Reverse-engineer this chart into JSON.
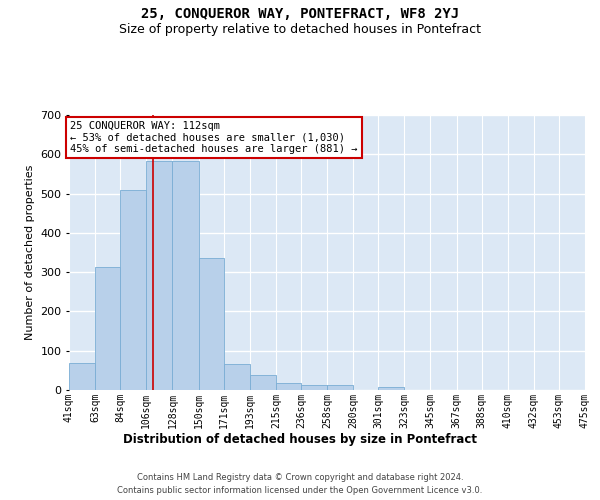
{
  "title": "25, CONQUEROR WAY, PONTEFRACT, WF8 2YJ",
  "subtitle": "Size of property relative to detached houses in Pontefract",
  "xlabel": "Distribution of detached houses by size in Pontefract",
  "ylabel": "Number of detached properties",
  "bar_color": "#b8d0ea",
  "bar_edge_color": "#7aadd4",
  "grid_color": "#c8d4e8",
  "background_color": "#dce8f5",
  "marker_line_color": "#cc0000",
  "marker_value": 112,
  "bin_edges": [
    41,
    63,
    84,
    106,
    128,
    150,
    171,
    193,
    215,
    236,
    258,
    280,
    301,
    323,
    345,
    367,
    388,
    410,
    432,
    453,
    475
  ],
  "bar_heights": [
    70,
    312,
    510,
    582,
    582,
    335,
    67,
    37,
    18,
    12,
    12,
    0,
    8,
    0,
    0,
    0,
    0,
    0,
    0,
    0
  ],
  "tick_labels": [
    "41sqm",
    "63sqm",
    "84sqm",
    "106sqm",
    "128sqm",
    "150sqm",
    "171sqm",
    "193sqm",
    "215sqm",
    "236sqm",
    "258sqm",
    "280sqm",
    "301sqm",
    "323sqm",
    "345sqm",
    "367sqm",
    "388sqm",
    "410sqm",
    "432sqm",
    "453sqm",
    "475sqm"
  ],
  "ylim": [
    0,
    700
  ],
  "annotation_line1": "25 CONQUEROR WAY: 112sqm",
  "annotation_line2": "← 53% of detached houses are smaller (1,030)",
  "annotation_line3": "45% of semi-detached houses are larger (881) →",
  "annotation_box_color": "#ffffff",
  "annotation_box_edge": "#cc0000",
  "footer_line1": "Contains HM Land Registry data © Crown copyright and database right 2024.",
  "footer_line2": "Contains public sector information licensed under the Open Government Licence v3.0.",
  "title_fontsize": 10,
  "subtitle_fontsize": 9,
  "tick_fontsize": 7,
  "ylabel_fontsize": 8,
  "xlabel_fontsize": 8.5
}
